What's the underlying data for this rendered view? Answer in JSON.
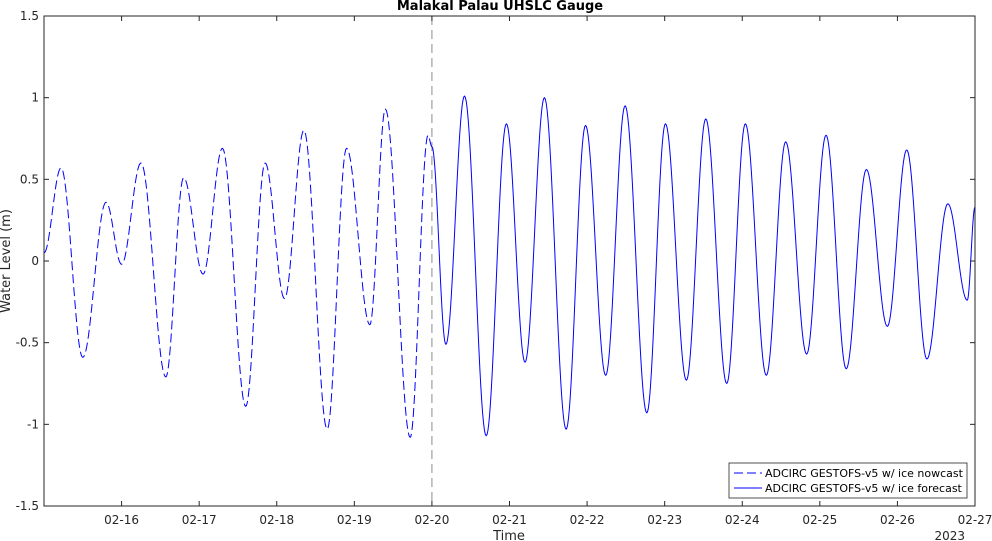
{
  "chart_data": {
    "type": "line",
    "title": "Malakal Palau UHSLC Gauge",
    "xlabel": "Time",
    "ylabel": "Water Level (m)",
    "year_label": "2023",
    "xlim": [
      15.0,
      27.0
    ],
    "ylim": [
      -1.5,
      1.5
    ],
    "grid": false,
    "legend_position": "bottom-right",
    "x_ticks": [
      {
        "x": 16,
        "label": "02-16"
      },
      {
        "x": 17,
        "label": "02-17"
      },
      {
        "x": 18,
        "label": "02-18"
      },
      {
        "x": 19,
        "label": "02-19"
      },
      {
        "x": 20,
        "label": "02-20"
      },
      {
        "x": 21,
        "label": "02-21"
      },
      {
        "x": 22,
        "label": "02-22"
      },
      {
        "x": 23,
        "label": "02-23"
      },
      {
        "x": 24,
        "label": "02-24"
      },
      {
        "x": 25,
        "label": "02-25"
      },
      {
        "x": 26,
        "label": "02-26"
      },
      {
        "x": 27,
        "label": "02-27"
      }
    ],
    "y_ticks": [
      {
        "y": 1.5,
        "label": "1.5"
      },
      {
        "y": 1.0,
        "label": "1"
      },
      {
        "y": 0.5,
        "label": "0.5"
      },
      {
        "y": 0.0,
        "label": "0"
      },
      {
        "y": -0.5,
        "label": "-0.5"
      },
      {
        "y": -1.0,
        "label": "-1"
      },
      {
        "y": -1.5,
        "label": "-1.5"
      }
    ],
    "divider_x": 20.0,
    "series": [
      {
        "name": "ADCIRC GESTOFS-v5 w/ ice nowcast",
        "style": "dashed",
        "color": "#0000ff",
        "extrema": [
          [
            15.0,
            0.05
          ],
          [
            15.22,
            0.57
          ],
          [
            15.5,
            -0.59
          ],
          [
            15.8,
            0.36
          ],
          [
            16.0,
            -0.02
          ],
          [
            16.25,
            0.6
          ],
          [
            16.57,
            -0.71
          ],
          [
            16.8,
            0.51
          ],
          [
            17.05,
            -0.08
          ],
          [
            17.3,
            0.69
          ],
          [
            17.6,
            -0.89
          ],
          [
            17.85,
            0.6
          ],
          [
            18.1,
            -0.23
          ],
          [
            18.35,
            0.8
          ],
          [
            18.65,
            -1.03
          ],
          [
            18.9,
            0.69
          ],
          [
            19.2,
            -0.39
          ],
          [
            19.4,
            0.93
          ],
          [
            19.72,
            -1.08
          ],
          [
            19.95,
            0.77
          ],
          [
            20.0,
            0.7
          ]
        ]
      },
      {
        "name": "ADCIRC GESTOFS-v5 w/ ice forecast",
        "style": "solid",
        "color": "#0000ff",
        "extrema": [
          [
            20.0,
            0.7
          ],
          [
            20.18,
            -0.51
          ],
          [
            20.42,
            1.01
          ],
          [
            20.7,
            -1.07
          ],
          [
            20.96,
            0.84
          ],
          [
            21.2,
            -0.62
          ],
          [
            21.45,
            1.0
          ],
          [
            21.73,
            -1.03
          ],
          [
            21.98,
            0.83
          ],
          [
            22.24,
            -0.7
          ],
          [
            22.49,
            0.95
          ],
          [
            22.77,
            -0.93
          ],
          [
            23.01,
            0.84
          ],
          [
            23.28,
            -0.73
          ],
          [
            23.53,
            0.87
          ],
          [
            23.8,
            -0.75
          ],
          [
            24.04,
            0.84
          ],
          [
            24.31,
            -0.7
          ],
          [
            24.56,
            0.73
          ],
          [
            24.83,
            -0.57
          ],
          [
            25.08,
            0.77
          ],
          [
            25.34,
            -0.66
          ],
          [
            25.6,
            0.56
          ],
          [
            25.87,
            -0.4
          ],
          [
            26.12,
            0.68
          ],
          [
            26.38,
            -0.6
          ],
          [
            26.65,
            0.35
          ],
          [
            26.9,
            -0.24
          ],
          [
            27.0,
            0.33
          ]
        ]
      }
    ]
  }
}
